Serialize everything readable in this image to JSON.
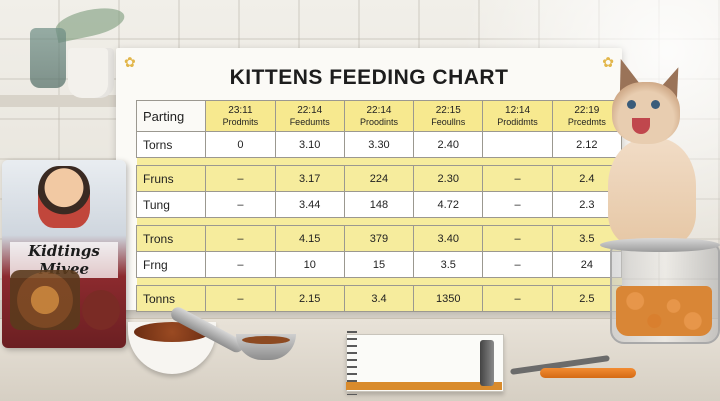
{
  "chart": {
    "title": "KITTENS FEEDING CHART",
    "corner_label": "Parting",
    "columns": [
      {
        "year": "23:11",
        "sub": "Prodmits"
      },
      {
        "year": "22:14",
        "sub": "Feedumts"
      },
      {
        "year": "22:14",
        "sub": "Proodints"
      },
      {
        "year": "22:15",
        "sub": "Feoullns"
      },
      {
        "year": "12:14",
        "sub": "Prodidmts"
      },
      {
        "year": "22:19",
        "sub": "Prcedmts"
      }
    ],
    "rows": [
      {
        "label": "Torns",
        "cells": [
          "0",
          "3.10",
          "3.30",
          "2.40",
          "",
          "2.12"
        ]
      },
      {
        "label": "Fruns",
        "cells": [
          "–",
          "3.17",
          "224",
          "2.30",
          "–",
          "2.4"
        ]
      },
      {
        "label": "Tung",
        "cells": [
          "–",
          "3.44",
          "148",
          "4.72",
          "–",
          "2.3"
        ]
      },
      {
        "label": "Trons",
        "cells": [
          "–",
          "4.15",
          "379",
          "3.40",
          "–",
          "3.5"
        ]
      },
      {
        "label": "Frng",
        "cells": [
          "–",
          "10",
          "15",
          "3.5",
          "–",
          "24"
        ]
      },
      {
        "label": "Tonns",
        "cells": [
          "–",
          "2.15",
          "3.4",
          "1350",
          "–",
          "2.5"
        ]
      }
    ]
  },
  "bag": {
    "brand": "Kidtings Mivee"
  },
  "colors": {
    "table_highlight": "#f6ec9d",
    "header_fill": "#f7e98f",
    "marker": "#f28c32"
  }
}
